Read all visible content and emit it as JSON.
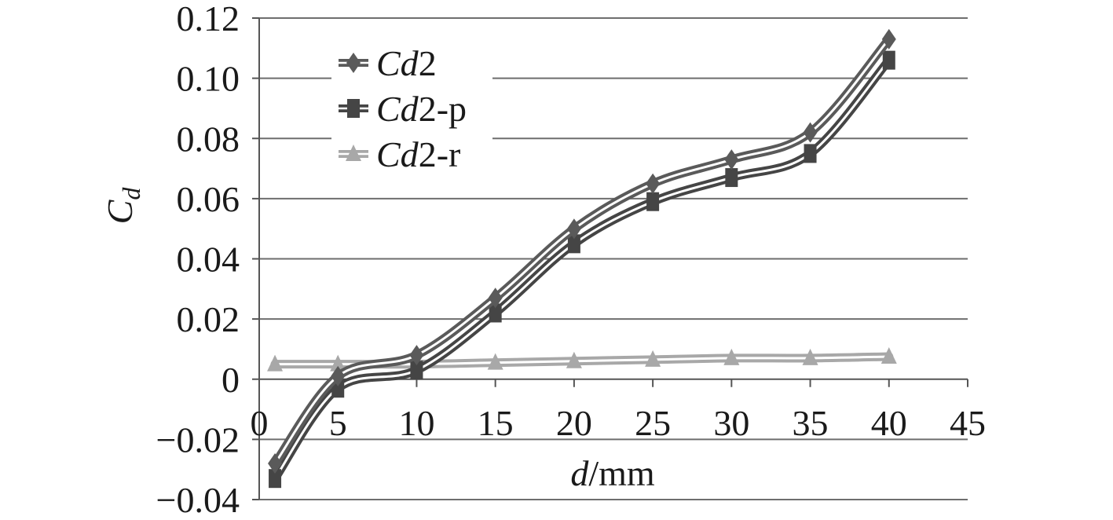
{
  "chart_data": {
    "type": "line",
    "title": "",
    "xlabel_italic": "d",
    "xlabel_rest": "/mm",
    "ylabel_main": "C",
    "ylabel_sub": "d",
    "xlim": [
      0,
      45
    ],
    "ylim": [
      -0.04,
      0.12
    ],
    "x_ticks": [
      "0",
      "5",
      "10",
      "15",
      "20",
      "25",
      "30",
      "35",
      "40",
      "45"
    ],
    "y_ticks": [
      "0.12",
      "0.10",
      "0.08",
      "0.06",
      "0.04",
      "0.02",
      "0",
      "−0.02",
      "−0.04"
    ],
    "x_tick_values": [
      0,
      5,
      10,
      15,
      20,
      25,
      30,
      35,
      40,
      45
    ],
    "y_tick_values": [
      0.12,
      0.1,
      0.08,
      0.06,
      0.04,
      0.02,
      0,
      -0.02,
      -0.04
    ],
    "grid": true,
    "legend_position": "top-left",
    "x": [
      1,
      5,
      10,
      15,
      20,
      25,
      30,
      35,
      40
    ],
    "series": [
      {
        "name_italic": "Cd",
        "name_rest": "2",
        "marker": "diamond",
        "color": "#5a5a5a",
        "values": [
          -0.028,
          0.001,
          0.008,
          0.027,
          0.05,
          0.065,
          0.073,
          0.082,
          0.113
        ]
      },
      {
        "name_italic": "Cd",
        "name_rest": "2-p",
        "marker": "square",
        "color": "#454545",
        "values": [
          -0.033,
          -0.003,
          0.003,
          0.022,
          0.045,
          0.059,
          0.067,
          0.075,
          0.106
        ]
      },
      {
        "name_italic": "Cd",
        "name_rest": "2-r",
        "marker": "triangle",
        "color": "#a8a8a8",
        "values": [
          0.005,
          0.005,
          0.005,
          0.0055,
          0.006,
          0.0065,
          0.007,
          0.007,
          0.0075
        ]
      }
    ]
  }
}
